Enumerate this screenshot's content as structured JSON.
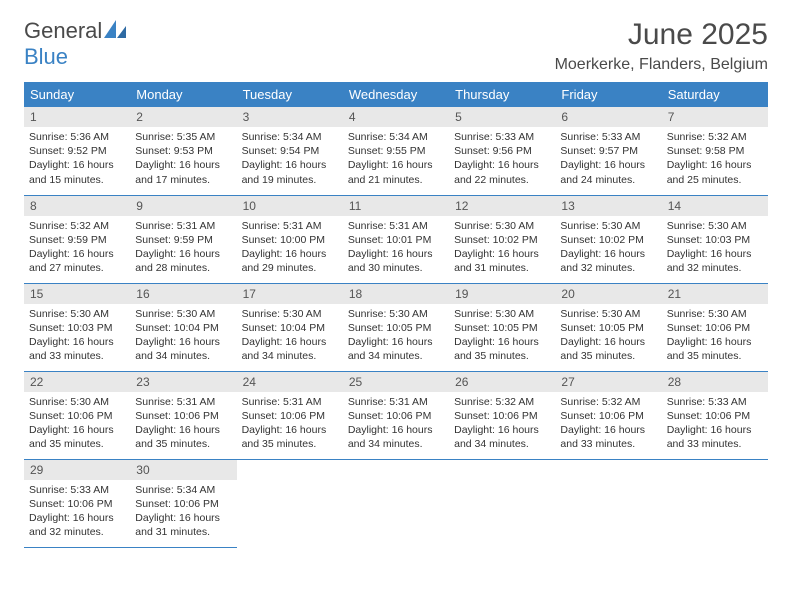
{
  "logo": {
    "text1": "General",
    "text2": "Blue"
  },
  "title": "June 2025",
  "location": "Moerkerke, Flanders, Belgium",
  "colors": {
    "header_bg": "#3a82c4",
    "header_fg": "#ffffff",
    "daynum_bg": "#e8e8e8",
    "rule": "#3a82c4",
    "text": "#333333",
    "logo_gray": "#4a4a4a",
    "logo_blue": "#3a82c4"
  },
  "weekdays": [
    "Sunday",
    "Monday",
    "Tuesday",
    "Wednesday",
    "Thursday",
    "Friday",
    "Saturday"
  ],
  "layout": {
    "start_weekday_index": 0,
    "days_in_month": 30,
    "fontsize_body": 10.5,
    "fontsize_head": 13,
    "fontsize_title": 30,
    "fontsize_location": 16
  },
  "days": [
    {
      "n": 1,
      "sunrise": "5:36 AM",
      "sunset": "9:52 PM",
      "daylight": "16 hours and 15 minutes."
    },
    {
      "n": 2,
      "sunrise": "5:35 AM",
      "sunset": "9:53 PM",
      "daylight": "16 hours and 17 minutes."
    },
    {
      "n": 3,
      "sunrise": "5:34 AM",
      "sunset": "9:54 PM",
      "daylight": "16 hours and 19 minutes."
    },
    {
      "n": 4,
      "sunrise": "5:34 AM",
      "sunset": "9:55 PM",
      "daylight": "16 hours and 21 minutes."
    },
    {
      "n": 5,
      "sunrise": "5:33 AM",
      "sunset": "9:56 PM",
      "daylight": "16 hours and 22 minutes."
    },
    {
      "n": 6,
      "sunrise": "5:33 AM",
      "sunset": "9:57 PM",
      "daylight": "16 hours and 24 minutes."
    },
    {
      "n": 7,
      "sunrise": "5:32 AM",
      "sunset": "9:58 PM",
      "daylight": "16 hours and 25 minutes."
    },
    {
      "n": 8,
      "sunrise": "5:32 AM",
      "sunset": "9:59 PM",
      "daylight": "16 hours and 27 minutes."
    },
    {
      "n": 9,
      "sunrise": "5:31 AM",
      "sunset": "9:59 PM",
      "daylight": "16 hours and 28 minutes."
    },
    {
      "n": 10,
      "sunrise": "5:31 AM",
      "sunset": "10:00 PM",
      "daylight": "16 hours and 29 minutes."
    },
    {
      "n": 11,
      "sunrise": "5:31 AM",
      "sunset": "10:01 PM",
      "daylight": "16 hours and 30 minutes."
    },
    {
      "n": 12,
      "sunrise": "5:30 AM",
      "sunset": "10:02 PM",
      "daylight": "16 hours and 31 minutes."
    },
    {
      "n": 13,
      "sunrise": "5:30 AM",
      "sunset": "10:02 PM",
      "daylight": "16 hours and 32 minutes."
    },
    {
      "n": 14,
      "sunrise": "5:30 AM",
      "sunset": "10:03 PM",
      "daylight": "16 hours and 32 minutes."
    },
    {
      "n": 15,
      "sunrise": "5:30 AM",
      "sunset": "10:03 PM",
      "daylight": "16 hours and 33 minutes."
    },
    {
      "n": 16,
      "sunrise": "5:30 AM",
      "sunset": "10:04 PM",
      "daylight": "16 hours and 34 minutes."
    },
    {
      "n": 17,
      "sunrise": "5:30 AM",
      "sunset": "10:04 PM",
      "daylight": "16 hours and 34 minutes."
    },
    {
      "n": 18,
      "sunrise": "5:30 AM",
      "sunset": "10:05 PM",
      "daylight": "16 hours and 34 minutes."
    },
    {
      "n": 19,
      "sunrise": "5:30 AM",
      "sunset": "10:05 PM",
      "daylight": "16 hours and 35 minutes."
    },
    {
      "n": 20,
      "sunrise": "5:30 AM",
      "sunset": "10:05 PM",
      "daylight": "16 hours and 35 minutes."
    },
    {
      "n": 21,
      "sunrise": "5:30 AM",
      "sunset": "10:06 PM",
      "daylight": "16 hours and 35 minutes."
    },
    {
      "n": 22,
      "sunrise": "5:30 AM",
      "sunset": "10:06 PM",
      "daylight": "16 hours and 35 minutes."
    },
    {
      "n": 23,
      "sunrise": "5:31 AM",
      "sunset": "10:06 PM",
      "daylight": "16 hours and 35 minutes."
    },
    {
      "n": 24,
      "sunrise": "5:31 AM",
      "sunset": "10:06 PM",
      "daylight": "16 hours and 35 minutes."
    },
    {
      "n": 25,
      "sunrise": "5:31 AM",
      "sunset": "10:06 PM",
      "daylight": "16 hours and 34 minutes."
    },
    {
      "n": 26,
      "sunrise": "5:32 AM",
      "sunset": "10:06 PM",
      "daylight": "16 hours and 34 minutes."
    },
    {
      "n": 27,
      "sunrise": "5:32 AM",
      "sunset": "10:06 PM",
      "daylight": "16 hours and 33 minutes."
    },
    {
      "n": 28,
      "sunrise": "5:33 AM",
      "sunset": "10:06 PM",
      "daylight": "16 hours and 33 minutes."
    },
    {
      "n": 29,
      "sunrise": "5:33 AM",
      "sunset": "10:06 PM",
      "daylight": "16 hours and 32 minutes."
    },
    {
      "n": 30,
      "sunrise": "5:34 AM",
      "sunset": "10:06 PM",
      "daylight": "16 hours and 31 minutes."
    }
  ],
  "labels": {
    "sunrise": "Sunrise:",
    "sunset": "Sunset:",
    "daylight": "Daylight:"
  }
}
